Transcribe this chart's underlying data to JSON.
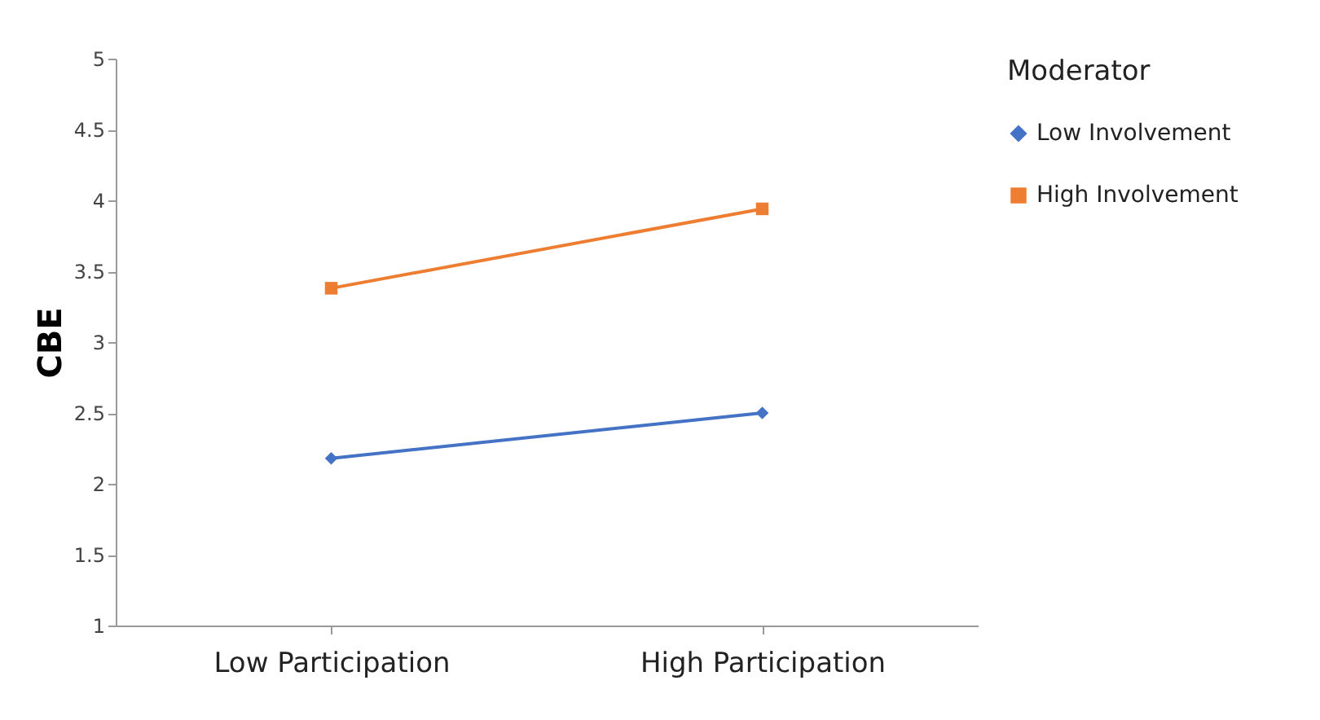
{
  "chart_data": {
    "type": "line",
    "ylabel": "CBE",
    "legend_title": "Moderator",
    "legend": "right",
    "grid": false,
    "categories": [
      "Low Participation",
      "High Participation"
    ],
    "ylim": [
      1,
      5
    ],
    "yticks": [
      1,
      1.5,
      2,
      2.5,
      3,
      3.5,
      4,
      4.5,
      5
    ],
    "series": [
      {
        "name": "Low Involvement",
        "color": "#4472c4",
        "marker": "diamond",
        "values": [
          2.18,
          2.5
        ]
      },
      {
        "name": "High Involvement",
        "color": "#ed7d31",
        "marker": "square",
        "values": [
          3.38,
          3.94
        ]
      }
    ]
  }
}
